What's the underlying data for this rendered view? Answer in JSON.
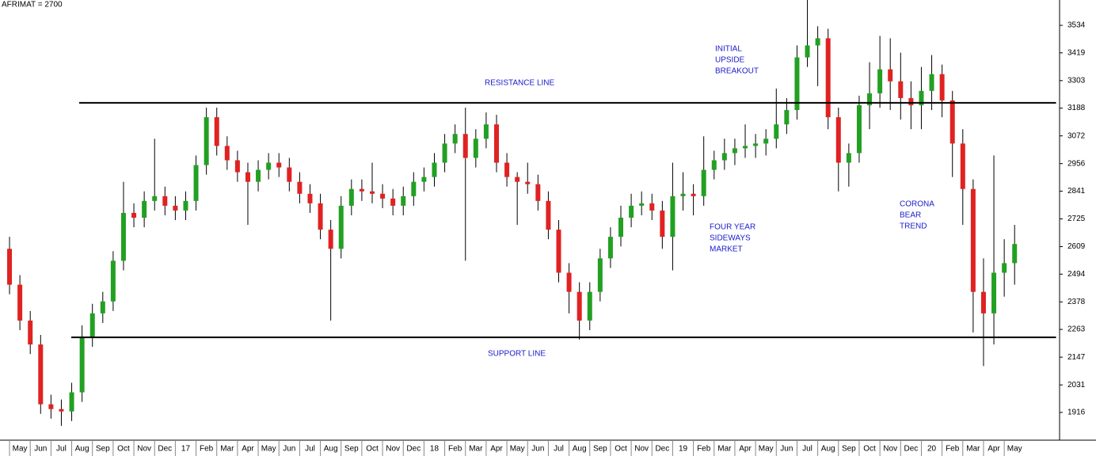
{
  "chart_data": {
    "type": "candlestick",
    "title": "AFRIMAT = 2700",
    "xlim": [
      -0.46,
      50.67
    ],
    "ylim": [
      1800,
      3640
    ],
    "yticks": [
      1916,
      2031,
      2147,
      2263,
      2378,
      2494,
      2609,
      2725,
      2841,
      2956,
      3072,
      3188,
      3303,
      3419,
      3534
    ],
    "xticks": [
      {
        "value": 0,
        "label": "May"
      },
      {
        "value": 1,
        "label": "Jun"
      },
      {
        "value": 2,
        "label": "Jul"
      },
      {
        "value": 3,
        "label": "Aug"
      },
      {
        "value": 4,
        "label": "Sep"
      },
      {
        "value": 5,
        "label": "Oct"
      },
      {
        "value": 6,
        "label": "Nov"
      },
      {
        "value": 7,
        "label": "Dec"
      },
      {
        "value": 8,
        "label": "17"
      },
      {
        "value": 9,
        "label": "Feb"
      },
      {
        "value": 10,
        "label": "Mar"
      },
      {
        "value": 11,
        "label": "Apr"
      },
      {
        "value": 12,
        "label": "May"
      },
      {
        "value": 13,
        "label": "Jun"
      },
      {
        "value": 14,
        "label": "Jul"
      },
      {
        "value": 15,
        "label": "Aug"
      },
      {
        "value": 16,
        "label": "Sep"
      },
      {
        "value": 17,
        "label": "Oct"
      },
      {
        "value": 18,
        "label": "Nov"
      },
      {
        "value": 19,
        "label": "Dec"
      },
      {
        "value": 20,
        "label": "18"
      },
      {
        "value": 21,
        "label": "Feb"
      },
      {
        "value": 22,
        "label": "Mar"
      },
      {
        "value": 23,
        "label": "Apr"
      },
      {
        "value": 24,
        "label": "May"
      },
      {
        "value": 25,
        "label": "Jun"
      },
      {
        "value": 26,
        "label": "Jul"
      },
      {
        "value": 27,
        "label": "Aug"
      },
      {
        "value": 28,
        "label": "Sep"
      },
      {
        "value": 29,
        "label": "Oct"
      },
      {
        "value": 30,
        "label": "Nov"
      },
      {
        "value": 31,
        "label": "Dec"
      },
      {
        "value": 32,
        "label": "19"
      },
      {
        "value": 33,
        "label": "Feb"
      },
      {
        "value": 34,
        "label": "Mar"
      },
      {
        "value": 35,
        "label": "Apr"
      },
      {
        "value": 36,
        "label": "May"
      },
      {
        "value": 37,
        "label": "Jun"
      },
      {
        "value": 38,
        "label": "Jul"
      },
      {
        "value": 39,
        "label": "Aug"
      },
      {
        "value": 40,
        "label": "Sep"
      },
      {
        "value": 41,
        "label": "Oct"
      },
      {
        "value": 42,
        "label": "Nov"
      },
      {
        "value": 43,
        "label": "Dec"
      },
      {
        "value": 44,
        "label": "20"
      },
      {
        "value": 45,
        "label": "Feb"
      },
      {
        "value": 46,
        "label": "Mar"
      },
      {
        "value": 47,
        "label": "Apr"
      },
      {
        "value": 48,
        "label": "May"
      }
    ],
    "up_color": "#22a022",
    "down_color": "#e02222",
    "x": [
      0,
      0.5,
      1,
      1.5,
      2,
      2.5,
      3,
      3.5,
      4,
      4.5,
      5,
      5.5,
      6,
      6.5,
      7,
      7.5,
      8,
      8.5,
      9,
      9.5,
      10,
      10.5,
      11,
      11.5,
      12,
      12.5,
      13,
      13.5,
      14,
      14.5,
      15,
      15.5,
      16,
      16.5,
      17,
      17.5,
      18,
      18.5,
      19,
      19.5,
      20,
      20.5,
      21,
      21.5,
      22,
      22.5,
      23,
      23.5,
      24,
      24.5,
      25,
      25.5,
      26,
      26.5,
      27,
      27.5,
      28,
      28.5,
      29,
      29.5,
      30,
      30.5,
      31,
      31.5,
      32,
      32.5,
      33,
      33.5,
      34,
      34.5,
      35,
      35.5,
      36,
      36.5,
      37,
      37.5,
      38,
      38.5,
      39,
      39.5,
      40,
      40.5,
      41,
      41.5,
      42,
      42.5,
      43,
      43.5,
      44,
      44.5,
      45,
      45.5,
      46,
      46.5,
      47,
      47.5,
      48,
      48.5
    ],
    "open": [
      2600,
      2450,
      2300,
      2200,
      1950,
      1930,
      1920,
      2000,
      2230,
      2330,
      2380,
      2550,
      2750,
      2730,
      2800,
      2820,
      2780,
      2760,
      2800,
      2950,
      3150,
      3030,
      2970,
      2920,
      2880,
      2930,
      2960,
      2940,
      2880,
      2830,
      2790,
      2680,
      2600,
      2780,
      2850,
      2840,
      2830,
      2810,
      2780,
      2820,
      2880,
      2900,
      2960,
      3040,
      3080,
      2980,
      3060,
      3120,
      2960,
      2900,
      2880,
      2870,
      2800,
      2680,
      2500,
      2420,
      2300,
      2420,
      2560,
      2650,
      2730,
      2780,
      2790,
      2760,
      2650,
      2820,
      2830,
      2820,
      2930,
      2970,
      3000,
      3020,
      3030,
      3040,
      3060,
      3120,
      3180,
      3400,
      3450,
      3480,
      3150,
      2960,
      3000,
      3200,
      3250,
      3350,
      3300,
      3230,
      3200,
      3260,
      3330,
      3220,
      3040,
      2850,
      2420,
      2330,
      2500,
      2540
    ],
    "high": [
      2650,
      2490,
      2340,
      2240,
      1990,
      1970,
      2040,
      2280,
      2370,
      2420,
      2590,
      2880,
      2790,
      2840,
      3060,
      2860,
      2820,
      2840,
      2990,
      3190,
      3190,
      3070,
      3010,
      2960,
      2970,
      3000,
      3000,
      2980,
      2920,
      2870,
      2830,
      2720,
      2820,
      2890,
      2890,
      2960,
      2870,
      2850,
      2860,
      2920,
      2940,
      3000,
      3080,
      3120,
      3190,
      3100,
      3170,
      3160,
      3000,
      2920,
      2960,
      2910,
      2840,
      2720,
      2540,
      2460,
      2460,
      2600,
      2690,
      2780,
      2830,
      2840,
      2830,
      2800,
      2960,
      2920,
      2870,
      3070,
      3010,
      3060,
      3060,
      3120,
      3080,
      3100,
      3270,
      3230,
      3450,
      3640,
      3530,
      3520,
      3190,
      3040,
      3240,
      3380,
      3490,
      3480,
      3420,
      3300,
      3360,
      3410,
      3370,
      3260,
      3100,
      2890,
      2560,
      2990,
      2640,
      2700
    ],
    "low": [
      2410,
      2260,
      2160,
      1910,
      1890,
      1860,
      1880,
      1960,
      2190,
      2290,
      2340,
      2510,
      2690,
      2690,
      2760,
      2740,
      2720,
      2720,
      2760,
      2910,
      2990,
      2930,
      2880,
      2700,
      2840,
      2890,
      2900,
      2840,
      2790,
      2750,
      2640,
      2300,
      2560,
      2740,
      2800,
      2790,
      2770,
      2740,
      2740,
      2780,
      2840,
      2860,
      2920,
      3000,
      2550,
      2940,
      3020,
      2920,
      2860,
      2700,
      2830,
      2760,
      2640,
      2460,
      2330,
      2220,
      2260,
      2380,
      2520,
      2610,
      2690,
      2740,
      2720,
      2600,
      2510,
      2760,
      2740,
      2780,
      2890,
      2930,
      2950,
      2980,
      2980,
      2990,
      3020,
      3080,
      3140,
      3360,
      3280,
      3100,
      2840,
      2860,
      2960,
      3100,
      3190,
      3180,
      3140,
      3100,
      3100,
      3180,
      3150,
      2900,
      2700,
      2250,
      2110,
      2200,
      2400,
      2450
    ],
    "close": [
      2450,
      2300,
      2200,
      1950,
      1930,
      1920,
      2000,
      2230,
      2330,
      2380,
      2550,
      2750,
      2730,
      2800,
      2820,
      2780,
      2760,
      2800,
      2950,
      3150,
      3030,
      2970,
      2920,
      2880,
      2930,
      2960,
      2940,
      2880,
      2830,
      2790,
      2680,
      2600,
      2780,
      2850,
      2840,
      2830,
      2810,
      2780,
      2820,
      2880,
      2900,
      2960,
      3040,
      3080,
      2980,
      3060,
      3120,
      2960,
      2900,
      2880,
      2870,
      2800,
      2680,
      2500,
      2420,
      2300,
      2420,
      2560,
      2650,
      2730,
      2780,
      2790,
      2760,
      2650,
      2820,
      2830,
      2820,
      2930,
      2970,
      3000,
      3020,
      3030,
      3040,
      3060,
      3120,
      3180,
      3400,
      3450,
      3480,
      3150,
      2960,
      3000,
      3200,
      3250,
      3350,
      3300,
      3230,
      3200,
      3260,
      3330,
      3220,
      3040,
      2850,
      2420,
      2330,
      2500,
      2540,
      2620
    ],
    "hlines": [
      {
        "value": 3210,
        "x": [
          3.36,
          50.5
        ]
      },
      {
        "value": 2230,
        "x": [
          2.98,
          50.5
        ]
      }
    ],
    "annotations": [
      [
        "RESISTANCE LINE"
      ],
      [
        "SUPPORT LINE"
      ],
      [
        "INITIAL",
        "UPSIDE",
        "BREAKOUT"
      ],
      [
        "FOUR YEAR",
        "SIDEWAYS",
        "MARKET"
      ],
      [
        "CORONA",
        "BEAR",
        "TREND"
      ]
    ]
  }
}
